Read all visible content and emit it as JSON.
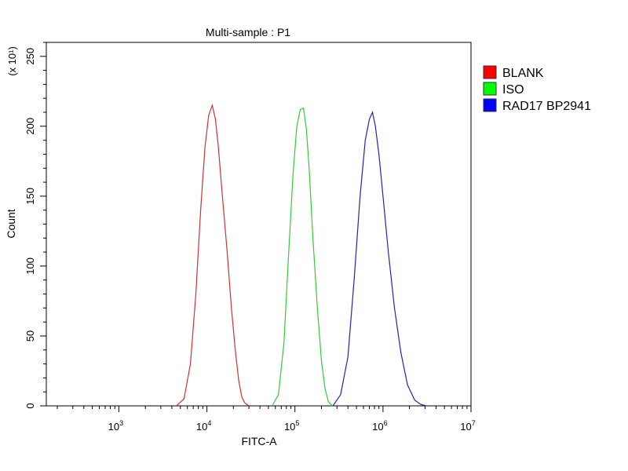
{
  "chart_data": {
    "type": "line",
    "title": "Multi-sample : P1",
    "xlabel": "FITC-A",
    "ylabel": "Count",
    "y_multiplier": "(x 10¹)",
    "x_scale": "log",
    "xlim": [
      150,
      10000000
    ],
    "ylim": [
      0,
      260
    ],
    "x_ticks": [
      {
        "value": 1000,
        "base": "10",
        "exp": "3"
      },
      {
        "value": 10000,
        "base": "10",
        "exp": "4"
      },
      {
        "value": 100000,
        "base": "10",
        "exp": "5"
      },
      {
        "value": 1000000,
        "base": "10",
        "exp": "6"
      },
      {
        "value": 10000000,
        "base": "10",
        "exp": "7"
      }
    ],
    "y_ticks": [
      0,
      50,
      100,
      150,
      200,
      250
    ],
    "y_tick_labels": [
      "0",
      "50",
      "100",
      "150",
      "200",
      "250"
    ],
    "grid": false,
    "legend_position": "right",
    "series": [
      {
        "name": "BLANK",
        "color": "#cc3333",
        "legend_color": "#ff0000",
        "x": [
          4500,
          5500,
          6500,
          7500,
          8500,
          9500,
          10500,
          11500,
          12500,
          13500,
          15000,
          17000,
          19000,
          21000,
          23000,
          25000,
          27000,
          30000
        ],
        "count": [
          0,
          5,
          30,
          80,
          140,
          185,
          208,
          215,
          205,
          185,
          150,
          110,
          70,
          40,
          18,
          6,
          2,
          0
        ]
      },
      {
        "name": "ISO",
        "color": "#33cc33",
        "legend_color": "#00ff00",
        "x": [
          55000,
          65000,
          75000,
          85000,
          95000,
          105000,
          115000,
          125000,
          135000,
          145000,
          160000,
          180000,
          200000,
          220000,
          240000,
          265000
        ],
        "count": [
          0,
          8,
          45,
          110,
          165,
          200,
          212,
          213,
          198,
          170,
          120,
          70,
          32,
          12,
          3,
          0
        ]
      },
      {
        "name": "RAD17 BP2941",
        "color": "#2222bb",
        "legend_color": "#0000ff",
        "x": [
          270000,
          330000,
          400000,
          470000,
          550000,
          630000,
          700000,
          760000,
          820000,
          900000,
          1000000,
          1150000,
          1350000,
          1600000,
          1900000,
          2300000,
          2700000,
          3100000
        ],
        "count": [
          0,
          8,
          35,
          90,
          150,
          190,
          205,
          210,
          200,
          180,
          150,
          110,
          70,
          38,
          15,
          4,
          1,
          0
        ]
      }
    ]
  }
}
